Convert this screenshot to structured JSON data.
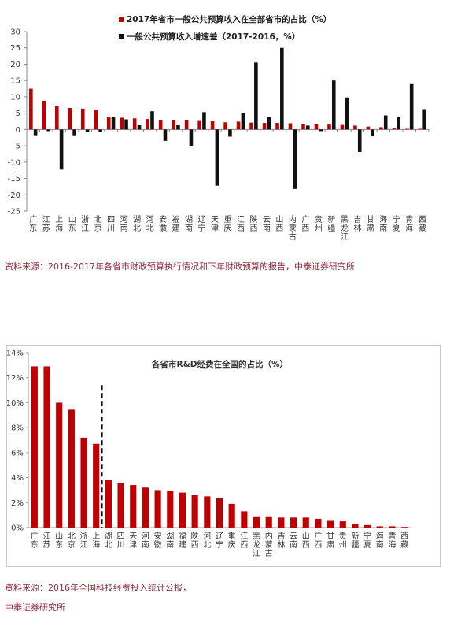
{
  "colors": {
    "red": "#c00000",
    "black": "#111111",
    "source_text": "#8c2a3a"
  },
  "chart1": {
    "source_text": "资料来源：2016-2017年各省市财政预算执行情况和下年财政预算的报告，中泰证券研究所"
  },
  "chart2": {
    "source_text_line1": "资料来源：2016年全国科技经费投入统计公报，",
    "source_text_line2": "中泰证券研究所"
  },
  "chart_data": [
    {
      "type": "bar",
      "title": "",
      "xlabel": "",
      "ylabel": "",
      "ylim": [
        -25,
        30
      ],
      "yticks": [
        "-25",
        "-20",
        "-15",
        "-10",
        "-5",
        "0",
        "5",
        "10",
        "15",
        "20",
        "25",
        "30"
      ],
      "grid": false,
      "legend_position": "top-right",
      "categories": [
        "广东",
        "江苏",
        "上海",
        "山东",
        "浙江",
        "北京",
        "四川",
        "河南",
        "湖北",
        "河北",
        "安徽",
        "福建",
        "湖南",
        "辽宁",
        "天津",
        "重庆",
        "江西",
        "陕西",
        "云南",
        "山西",
        "内蒙古",
        "广西",
        "贵州",
        "新疆",
        "黑龙江",
        "吉林",
        "甘肃",
        "海南",
        "宁夏",
        "青海",
        "西藏"
      ],
      "series": [
        {
          "name": "2017年省市一般公共预算收入在全部省市的占比（%）",
          "color": "red",
          "values": [
            12.5,
            8.8,
            7.1,
            6.6,
            6.4,
            5.9,
            3.7,
            3.6,
            3.4,
            3.2,
            2.9,
            2.9,
            2.9,
            2.6,
            2.5,
            2.2,
            2.4,
            2.1,
            2.0,
            2.0,
            1.9,
            1.6,
            1.6,
            1.5,
            1.4,
            1.2,
            0.9,
            0.7,
            0.3,
            0.2,
            0.2
          ]
        },
        {
          "name": "一般公共预算收入增速差（2017-2016，%）",
          "color": "black",
          "values": [
            -2.0,
            -0.5,
            -12.3,
            -2.0,
            -0.8,
            -0.7,
            3.7,
            3.1,
            1.3,
            5.6,
            -3.5,
            1.3,
            -5.0,
            5.3,
            -17.2,
            -2.2,
            5.0,
            20.5,
            3.8,
            25.0,
            -18.2,
            1.2,
            -0.5,
            15.0,
            9.8,
            -6.9,
            -2.1,
            4.3,
            3.8,
            13.9,
            6.0
          ]
        }
      ]
    },
    {
      "type": "bar",
      "title": "各省市R&D经费在全国的占比（%）",
      "xlabel": "",
      "ylabel": "",
      "ylim": [
        0,
        14
      ],
      "yticks": [
        "0%",
        "2%",
        "4%",
        "6%",
        "8%",
        "10%",
        "12%",
        "14%"
      ],
      "grid": false,
      "categories": [
        "广东",
        "江苏",
        "山东",
        "北京",
        "浙江",
        "上海",
        "湖北",
        "四川",
        "天津",
        "河南",
        "安徽",
        "湖南",
        "福建",
        "陕西",
        "河北",
        "辽宁",
        "重庆",
        "江西",
        "黑龙江",
        "内蒙古",
        "吉林",
        "云南",
        "山西",
        "广西",
        "甘肃",
        "贵州",
        "新疆",
        "宁夏",
        "海南",
        "青海",
        "西藏"
      ],
      "series": [
        {
          "name": "",
          "color": "red",
          "values": [
            12.9,
            12.9,
            10.0,
            9.5,
            7.2,
            6.7,
            3.8,
            3.6,
            3.4,
            3.2,
            3.0,
            2.9,
            2.8,
            2.6,
            2.5,
            2.4,
            1.9,
            1.3,
            0.9,
            0.9,
            0.8,
            0.8,
            0.8,
            0.7,
            0.6,
            0.5,
            0.3,
            0.2,
            0.1,
            0.1,
            0.05
          ]
        }
      ],
      "annotation": "dashed vertical separator between 上海 and 湖北"
    }
  ]
}
